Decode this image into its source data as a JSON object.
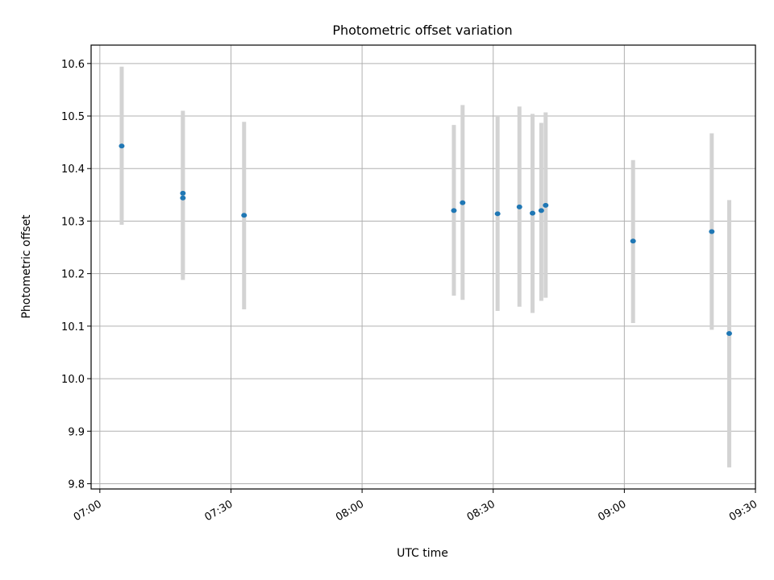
{
  "chart_data": {
    "type": "scatter",
    "title": "Photometric offset variation",
    "xlabel": "UTC time",
    "ylabel": "Photometric offset",
    "x_ticks": [
      "07:00",
      "07:30",
      "08:00",
      "08:30",
      "09:00",
      "09:30"
    ],
    "y_ticks": [
      "9.8",
      "9.9",
      "10.0",
      "10.1",
      "10.2",
      "10.3",
      "10.4",
      "10.5",
      "10.6"
    ],
    "xlim": [
      "06:58",
      "09:30"
    ],
    "ylim": [
      9.79,
      10.635
    ],
    "grid": true,
    "marker_color": "#1f77b4",
    "errorbar_color": "#d3d3d3",
    "points": [
      {
        "x": "07:05",
        "y": 10.443,
        "ylow": 10.293,
        "yhigh": 10.594
      },
      {
        "x": "07:19",
        "y": 10.344,
        "ylow": 10.188,
        "yhigh": 10.5
      },
      {
        "x": "07:19",
        "y": 10.353,
        "ylow": 10.196,
        "yhigh": 10.51
      },
      {
        "x": "07:33",
        "y": 10.311,
        "ylow": 10.132,
        "yhigh": 10.489
      },
      {
        "x": "08:21",
        "y": 10.32,
        "ylow": 10.158,
        "yhigh": 10.483
      },
      {
        "x": "08:23",
        "y": 10.335,
        "ylow": 10.15,
        "yhigh": 10.521
      },
      {
        "x": "08:31",
        "y": 10.314,
        "ylow": 10.129,
        "yhigh": 10.5
      },
      {
        "x": "08:36",
        "y": 10.327,
        "ylow": 10.137,
        "yhigh": 10.518
      },
      {
        "x": "08:39",
        "y": 10.315,
        "ylow": 10.125,
        "yhigh": 10.504
      },
      {
        "x": "08:41",
        "y": 10.32,
        "ylow": 10.148,
        "yhigh": 10.487
      },
      {
        "x": "08:42",
        "y": 10.33,
        "ylow": 10.154,
        "yhigh": 10.507
      },
      {
        "x": "09:02",
        "y": 10.262,
        "ylow": 10.106,
        "yhigh": 10.416
      },
      {
        "x": "09:20",
        "y": 10.28,
        "ylow": 10.093,
        "yhigh": 10.467
      },
      {
        "x": "09:24",
        "y": 10.086,
        "ylow": 9.831,
        "yhigh": 10.34
      }
    ]
  }
}
